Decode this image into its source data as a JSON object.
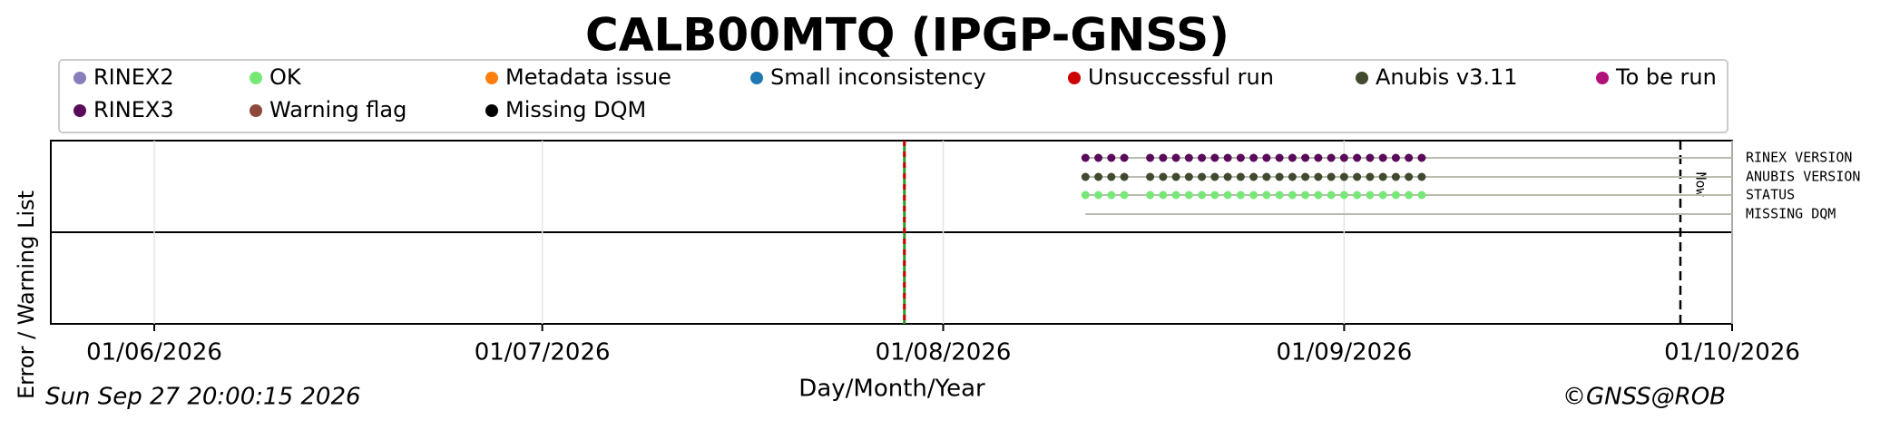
{
  "chart_data": {
    "type": "timeline",
    "title": "CALB00MTQ (IPGP-GNSS)",
    "xlabel": "Day/Month/Year",
    "ylabel": "Error / Warning List",
    "timestamp": "Sun Sep 27 20:00:15 2026",
    "credit": "©GNSS@ROB",
    "xlim": [
      "24/05/2026",
      "01/10/2026"
    ],
    "xticks": [
      "01/06/2026",
      "01/07/2026",
      "01/08/2026",
      "01/09/2026",
      "01/10/2026"
    ],
    "grid": true,
    "now": "27/09/2026",
    "now_label": "Now",
    "event_line": "29/07/2026",
    "legend": [
      {
        "name": "RINEX2",
        "color": "#8a7dbb"
      },
      {
        "name": "OK",
        "color": "#77e877"
      },
      {
        "name": "Metadata issue",
        "color": "#ff7f0e"
      },
      {
        "name": "Small inconsistency",
        "color": "#1f77b4"
      },
      {
        "name": "Unsuccessful run",
        "color": "#cc0000"
      },
      {
        "name": "Anubis v3.11",
        "color": "#3f4a2e"
      },
      {
        "name": "To be run",
        "color": "#b0127a"
      },
      {
        "name": "RINEX3",
        "color": "#5a0a5a"
      },
      {
        "name": "Warning flag",
        "color": "#8b4a3a"
      },
      {
        "name": "Missing DQM",
        "color": "#000000"
      }
    ],
    "x": [
      "12/08/2026",
      "13/08/2026",
      "14/08/2026",
      "15/08/2026",
      "17/08/2026",
      "18/08/2026",
      "19/08/2026",
      "20/08/2026",
      "21/08/2026",
      "22/08/2026",
      "23/08/2026",
      "24/08/2026",
      "25/08/2026",
      "26/08/2026",
      "27/08/2026",
      "28/08/2026",
      "29/08/2026",
      "30/08/2026",
      "31/08/2026",
      "01/09/2026",
      "02/09/2026",
      "03/09/2026",
      "04/09/2026",
      "05/09/2026",
      "06/09/2026",
      "07/09/2026"
    ],
    "rows": [
      {
        "label": "RINEX VERSION",
        "color": "#5a0a5a",
        "points": true
      },
      {
        "label": "ANUBIS VERSION",
        "color": "#3f4a2e",
        "points": true
      },
      {
        "label": "STATUS",
        "color": "#77e877",
        "points": true
      },
      {
        "label": "MISSING DQM",
        "color": "#000000",
        "points": false
      }
    ]
  }
}
